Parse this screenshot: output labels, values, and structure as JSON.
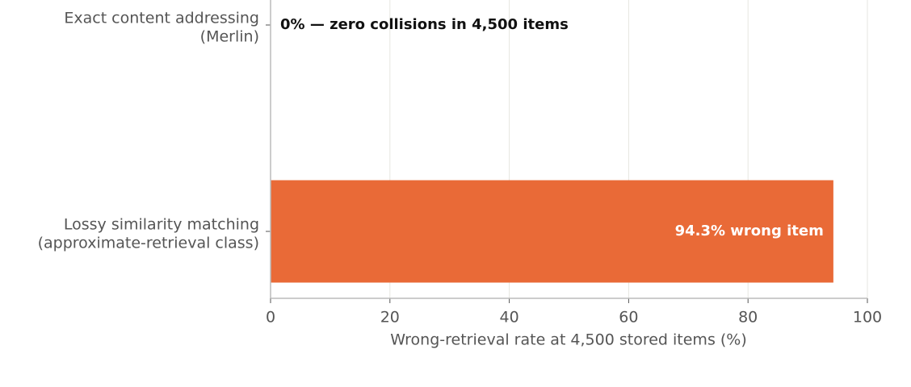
{
  "chart_data": {
    "type": "barh",
    "categories": [
      "Exact content addressing\n(Merlin)",
      "Lossy similarity matching\n(approximate-retrieval class)"
    ],
    "values": [
      0,
      94.3
    ],
    "value_labels": [
      "0%  —  zero collisions in 4,500 items",
      "94.3% wrong item"
    ],
    "color": "#e96a37",
    "xlabel": "Wrong-retrieval rate at 4,500 stored items (%)",
    "xlim": [
      0,
      100
    ],
    "xticks": [
      0,
      20,
      40,
      60,
      80,
      100
    ],
    "grid": true
  }
}
